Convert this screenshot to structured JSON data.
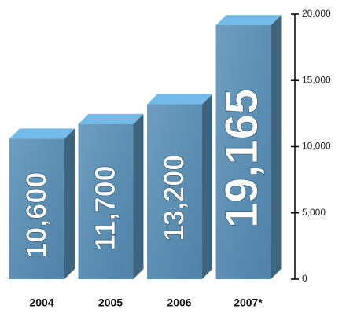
{
  "chart_data": {
    "type": "bar3d",
    "categories": [
      "2004",
      "2005",
      "2006",
      "2007*"
    ],
    "values": [
      10600,
      11700,
      13200,
      19165
    ],
    "value_labels": [
      "10,600",
      "11,700",
      "13,200",
      "19,165"
    ],
    "color": "#5a90b4",
    "ylim": [
      0,
      20000
    ],
    "yticks": [
      0,
      {
        "value": 5000,
        "label": "5,000"
      },
      {
        "value": 10000,
        "label": "10,000"
      },
      {
        "value": 15000,
        "label": "15,000"
      },
      {
        "value": 20000,
        "label": "20,000"
      }
    ],
    "axis_side": "right"
  }
}
